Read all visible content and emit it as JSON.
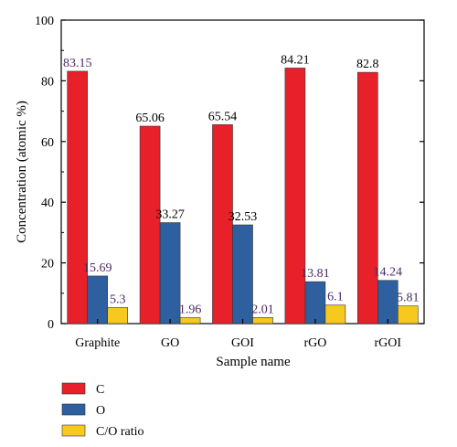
{
  "chart_data": {
    "type": "bar",
    "title": "",
    "xlabel": "Sample name",
    "ylabel": "Concentration (atomic %)",
    "ylim": [
      0,
      100
    ],
    "yticks": [
      0,
      20,
      40,
      60,
      80,
      100
    ],
    "categories": [
      "Graphite",
      "GO",
      "GOI",
      "rGO",
      "rGOI"
    ],
    "series": [
      {
        "name": "C",
        "color": "#e8202a",
        "values": [
          83.15,
          65.06,
          65.54,
          84.21,
          82.8
        ],
        "labels": [
          "83.15",
          "65.06",
          "65.54",
          "84.21",
          "82.8"
        ],
        "label_colors": [
          "#4a2a63",
          "#000000",
          "#000000",
          "#000000",
          "#000000"
        ]
      },
      {
        "name": "O",
        "color": "#2e5f9e",
        "values": [
          15.69,
          33.27,
          32.53,
          13.81,
          14.24
        ],
        "labels": [
          "15.69",
          "33.27",
          "32.53",
          "13.81",
          "14.24"
        ],
        "label_colors": [
          "#4a2a63",
          "#000000",
          "#000000",
          "#4a2a63",
          "#4a2a63"
        ]
      },
      {
        "name": "C/O ratio",
        "color": "#f7c81e",
        "values": [
          5.3,
          1.96,
          2.01,
          6.1,
          5.81
        ],
        "labels": [
          "5.3",
          "1.96",
          "2.01",
          "6.1",
          "5.81"
        ],
        "label_colors": [
          "#4a2a63",
          "#4a2a63",
          "#4a2a63",
          "#4a2a63",
          "#4a2a63"
        ]
      }
    ],
    "legend_position": "bottom-left",
    "grid": false
  }
}
